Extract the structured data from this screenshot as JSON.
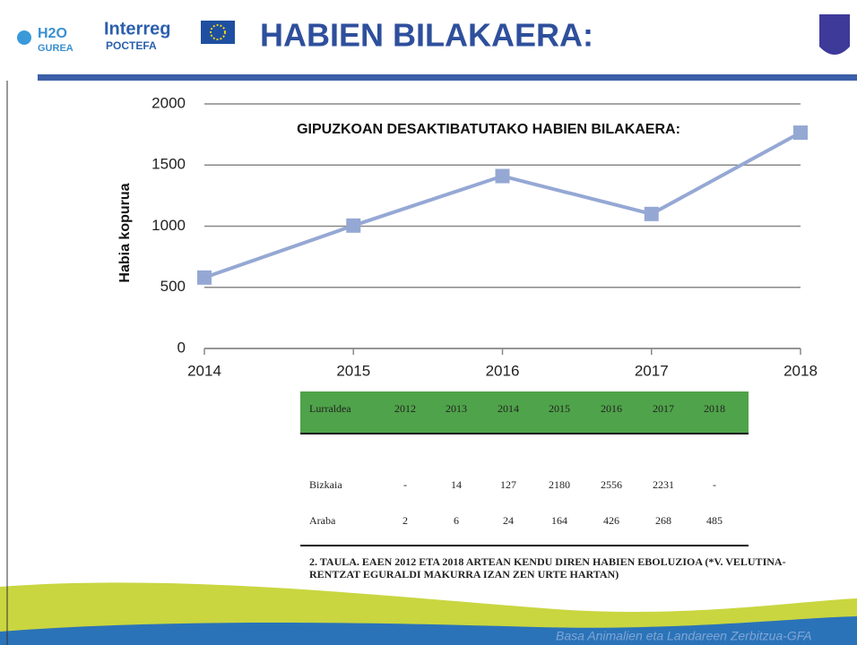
{
  "header": {
    "logo_h2o": "H2O",
    "logo_gurea": "GUREA",
    "logo_interreg": "Interreg",
    "logo_poctefa": "POCTEFA",
    "title": "HABIEN BILAKAERA:"
  },
  "chart_data": {
    "type": "line",
    "title": "GIPUZKOAN DESAKTIBATUTAKO HABIEN BILAKAERA:",
    "y_label": "Habia kopurua",
    "x": [
      2014,
      2015,
      2016,
      2017,
      2018
    ],
    "values": [
      580,
      1005,
      1410,
      1100,
      1765
    ],
    "color": "#95a8d4",
    "xlim": [
      2014,
      2018
    ],
    "xticks": [
      2014,
      2015,
      2016,
      2017,
      2018
    ],
    "ylim": [
      0,
      2000
    ],
    "yticks": [
      0,
      500,
      1000,
      1500,
      2000
    ],
    "grid": true
  },
  "table": {
    "header": [
      "Lurraldea",
      "2012",
      "2013",
      "2014",
      "2015",
      "2016",
      "2017",
      "2018"
    ],
    "rows": [
      [
        "Bizkaia",
        "-",
        "14",
        "127",
        "2180",
        "2556",
        "2231",
        "-"
      ],
      [
        "Araba",
        "2",
        "6",
        "24",
        "164",
        "426",
        "268",
        "485"
      ]
    ],
    "caption": [
      "2. TAULA. EAEN 2012 ETA 2018 ARTEAN KENDU DIREN HABIEN EBOLUZIOA (*V. VELUTINA-",
      "RENTZAT EGURALDI MAKURRA IZAN ZEN URTE HARTAN)"
    ]
  },
  "footer": {
    "text": "Basa Animalien eta Landareen Zerbitzua-GFA"
  }
}
